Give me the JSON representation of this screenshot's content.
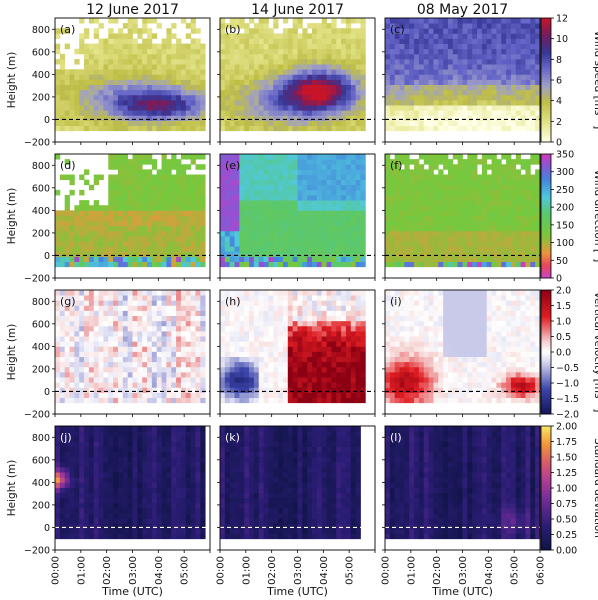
{
  "columns": [
    "12 June 2017",
    "14 June 2017",
    "08 May 2017"
  ],
  "ylabel": "Height (m)",
  "xlabel": "Time (UTC)",
  "x_ticks": [
    "00:00",
    "01:00",
    "02:00",
    "03:00",
    "04:00",
    "05:00",
    "06:00"
  ],
  "y_ticks": [
    "800",
    "600",
    "400",
    "200",
    "0",
    "−200"
  ],
  "rows": [
    {
      "panel_labels": [
        "(a)",
        "(b)",
        "(c)"
      ],
      "colorbar_label": "Wind speed [ms⁻¹]",
      "colorbar_ticks": [
        "12",
        "10",
        "8",
        "6",
        "4",
        "2",
        "0"
      ],
      "colormap": "yellow-blue-red",
      "range": [
        0,
        12
      ]
    },
    {
      "panel_labels": [
        "(d)",
        "(e)",
        "(f)"
      ],
      "colorbar_label": "Wind direction [°]",
      "colorbar_ticks": [
        "350",
        "300",
        "250",
        "200",
        "150",
        "100",
        "50",
        "0"
      ],
      "colormap": "cyclic",
      "range": [
        0,
        360
      ]
    },
    {
      "panel_labels": [
        "(g)",
        "(h)",
        "(i)"
      ],
      "colorbar_label": "Vertical velocity [ms⁻¹]",
      "colorbar_ticks": [
        "2.0",
        "1.5",
        "1.0",
        "0.5",
        "0.0",
        "−0.5",
        "−1.0",
        "−1.5",
        "−2.0"
      ],
      "colormap": "blue-white-red",
      "range": [
        -2,
        2
      ]
    },
    {
      "panel_labels": [
        "(j)",
        "(k)",
        "(l)"
      ],
      "colorbar_label": "Standard deviation",
      "colorbar_ticks": [
        "2.00",
        "1.75",
        "1.50",
        "1.25",
        "1.00",
        "0.75",
        "0.50",
        "0.25",
        "0.00"
      ],
      "colormap": "plasma",
      "range": [
        0,
        2
      ]
    }
  ],
  "chart_data": {
    "type": "heatmap",
    "x_unit": "hours UTC",
    "xlim": [
      0,
      6
    ],
    "ylim": [
      -200,
      900
    ],
    "reference_line": {
      "height_m": 0,
      "style": "dashed"
    },
    "panels": [
      {
        "label": "(a)",
        "row": 0,
        "col": 0,
        "quantity": "wind speed",
        "summary": "weak (2-3) above 600 m, low-level jet maximum ~10 near 100-200 m after 03:30",
        "max": 10
      },
      {
        "label": "(b)",
        "row": 0,
        "col": 1,
        "quantity": "wind speed",
        "summary": "jet maximum ~11 near 200-400 m around 03:30-04:30",
        "max": 11
      },
      {
        "label": "(c)",
        "row": 0,
        "col": 2,
        "quantity": "wind speed",
        "summary": "moderate 6-8 aloft, weak 2-3 near surface",
        "max": 8
      },
      {
        "label": "(d)",
        "row": 1,
        "col": 0,
        "quantity": "wind direction",
        "summary": "~120° above 500 m, ~80° near surface"
      },
      {
        "label": "(e)",
        "row": 1,
        "col": 1,
        "quantity": "wind direction",
        "summary": "~330° early aloft, ~200° below 400 m"
      },
      {
        "label": "(f)",
        "row": 1,
        "col": 2,
        "quantity": "wind direction",
        "summary": "~110-130° throughout"
      },
      {
        "label": "(g)",
        "row": 2,
        "col": 0,
        "quantity": "vertical velocity",
        "summary": "near zero, weak ±0.5"
      },
      {
        "label": "(h)",
        "row": 2,
        "col": 1,
        "quantity": "vertical velocity",
        "summary": "downward −1.5 until 01:30, upward ~1.8 after 02:45"
      },
      {
        "label": "(i)",
        "row": 2,
        "col": 2,
        "quantity": "vertical velocity",
        "summary": "upward ~1.5 before 01:45 and after 04:45"
      },
      {
        "label": "(j)",
        "row": 3,
        "col": 0,
        "quantity": "standard deviation",
        "summary": "low ~0.2, peak ~1.5 near 400 m at 00:15"
      },
      {
        "label": "(k)",
        "row": 3,
        "col": 1,
        "quantity": "standard deviation",
        "summary": "low ~0.2-0.4"
      },
      {
        "label": "(l)",
        "row": 3,
        "col": 2,
        "quantity": "standard deviation",
        "summary": "low ~0.2-0.5"
      }
    ]
  }
}
